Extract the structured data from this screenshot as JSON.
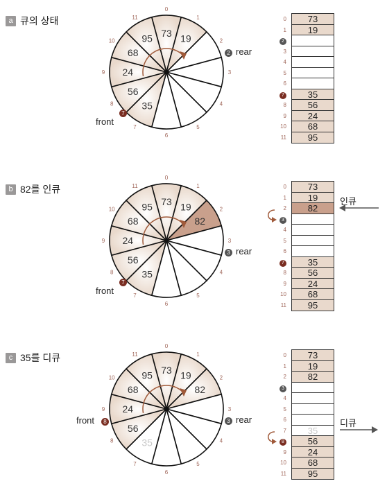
{
  "panels": [
    {
      "badge": "a",
      "title": "큐의 상태",
      "ring": [
        "73",
        "19",
        "",
        "",
        "",
        "",
        "",
        "35",
        "56",
        "24",
        "68",
        "95"
      ],
      "ring_ghost": [],
      "ring_highlight": [],
      "front": {
        "label": "front",
        "marker": "7"
      },
      "rear": {
        "label": "rear",
        "marker": "2"
      },
      "array": [
        "73",
        "19",
        "",
        "",
        "",
        "",
        "",
        "35",
        "56",
        "24",
        "68",
        "95"
      ],
      "array_ghost": [],
      "array_highlight": [],
      "array_markers": {
        "2": "2",
        "7": "7"
      },
      "array_marker_colors": {
        "2": "gray",
        "7": "red"
      },
      "op": null
    },
    {
      "badge": "b",
      "title": "82를 인큐",
      "ring": [
        "73",
        "19",
        "82",
        "",
        "",
        "",
        "",
        "35",
        "56",
        "24",
        "68",
        "95"
      ],
      "ring_ghost": [],
      "ring_highlight": [
        2
      ],
      "front": {
        "label": "front",
        "marker": "7"
      },
      "rear": {
        "label": "rear",
        "marker": "3"
      },
      "array": [
        "73",
        "19",
        "82",
        "",
        "",
        "",
        "",
        "35",
        "56",
        "24",
        "68",
        "95"
      ],
      "array_ghost": [],
      "array_highlight": [
        2
      ],
      "array_markers": {
        "3": "3",
        "7": "7"
      },
      "array_marker_colors": {
        "3": "gray",
        "7": "red"
      },
      "op": {
        "label": "인큐",
        "dir": "in",
        "row": 2
      }
    },
    {
      "badge": "c",
      "title": "35를 디큐",
      "ring": [
        "73",
        "19",
        "82",
        "",
        "",
        "",
        "",
        "35",
        "56",
        "24",
        "68",
        "95"
      ],
      "ring_ghost": [
        7
      ],
      "ring_highlight": [],
      "front": {
        "label": "front",
        "marker": "8"
      },
      "rear": {
        "label": "rear",
        "marker": "3"
      },
      "array": [
        "73",
        "19",
        "82",
        "",
        "",
        "",
        "",
        "35",
        "56",
        "24",
        "68",
        "95"
      ],
      "array_ghost": [
        7
      ],
      "array_highlight": [],
      "array_markers": {
        "3": "3",
        "8": "8"
      },
      "array_marker_colors": {
        "3": "gray",
        "8": "red"
      },
      "op": {
        "label": "디큐",
        "dir": "out",
        "row": 7
      }
    }
  ],
  "ring_index_labels": [
    "0",
    "1",
    "2",
    "3",
    "4",
    "5",
    "6",
    "7",
    "8",
    "9",
    "10",
    "11"
  ],
  "array_index_labels": [
    "0",
    "1",
    "2",
    "3",
    "4",
    "5",
    "6",
    "7",
    "8",
    "9",
    "10",
    "11"
  ],
  "colors": {
    "filled": "#e9d9cc",
    "highlight": "#c9a08c",
    "arrow": "#a05a3a",
    "index": "#a0675a",
    "marker_red": "#7a2e22",
    "marker_gray": "#555555",
    "ghost": "#c8c8c8"
  }
}
